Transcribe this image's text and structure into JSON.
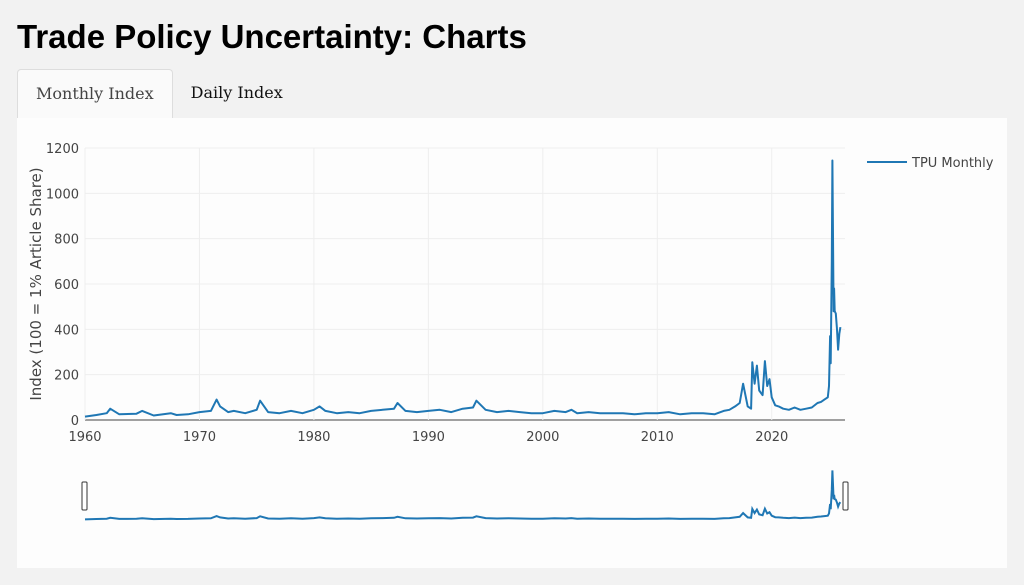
{
  "title": "Trade Policy Uncertainty: Charts",
  "tabs": [
    {
      "label": "Monthly Index",
      "active": true
    },
    {
      "label": "Daily Index",
      "active": false
    }
  ],
  "chart_data": {
    "type": "line",
    "title": "",
    "xlabel": "",
    "ylabel": "Index (100 = 1% Article Share)",
    "xlim": [
      1960,
      2026.4
    ],
    "ylim": [
      0,
      1200
    ],
    "xticks": [
      "1960",
      "1970",
      "1980",
      "1990",
      "2000",
      "2010",
      "2020"
    ],
    "yticks": [
      "0",
      "200",
      "400",
      "600",
      "800",
      "1000",
      "1200"
    ],
    "legend": {
      "position": "top-right",
      "entries": [
        "TPU Monthly"
      ]
    },
    "grid": true,
    "range_slider": true,
    "series": [
      {
        "name": "TPU Monthly",
        "color": "#1f77b4",
        "x": [
          1960,
          1961,
          1961.9,
          1962.2,
          1963,
          1964.5,
          1965,
          1966,
          1967.5,
          1968,
          1969,
          1970,
          1971,
          1971.5,
          1971.8,
          1972.5,
          1973,
          1974,
          1975,
          1975.3,
          1976,
          1977,
          1978,
          1979,
          1980,
          1980.5,
          1981,
          1982,
          1983,
          1984,
          1985,
          1986,
          1987,
          1987.3,
          1988,
          1989,
          1990,
          1991,
          1992,
          1993,
          1993.9,
          1994.2,
          1995,
          1996,
          1997,
          1998,
          1999,
          2000,
          2001,
          2002,
          2002.5,
          2003,
          2004,
          2005,
          2006,
          2007,
          2008,
          2009,
          2010,
          2011,
          2012,
          2013,
          2014,
          2015,
          2015.8,
          2016.3,
          2016.8,
          2017.2,
          2017.5,
          2017.9,
          2018.2,
          2018.3,
          2018.5,
          2018.7,
          2018.9,
          2019.2,
          2019.4,
          2019.6,
          2019.8,
          2020,
          2020.3,
          2020.6,
          2021,
          2021.5,
          2022,
          2022.5,
          2023,
          2023.5,
          2024,
          2024.3,
          2024.6,
          2024.9,
          2025.0,
          2025.1,
          2025.15,
          2025.25,
          2025.3,
          2025.4,
          2025.45,
          2025.5,
          2025.6,
          2025.7,
          2025.8,
          2025.9,
          2026
        ],
        "y": [
          15,
          22,
          30,
          50,
          25,
          28,
          40,
          20,
          30,
          22,
          25,
          35,
          40,
          90,
          60,
          35,
          40,
          30,
          45,
          85,
          35,
          30,
          40,
          30,
          45,
          60,
          40,
          30,
          35,
          30,
          40,
          45,
          50,
          75,
          40,
          35,
          40,
          45,
          35,
          50,
          55,
          85,
          45,
          35,
          40,
          35,
          30,
          30,
          40,
          35,
          45,
          30,
          35,
          30,
          30,
          30,
          25,
          30,
          30,
          35,
          25,
          30,
          30,
          25,
          40,
          45,
          60,
          75,
          160,
          60,
          50,
          255,
          160,
          240,
          130,
          110,
          260,
          150,
          180,
          100,
          65,
          60,
          50,
          45,
          55,
          45,
          50,
          55,
          75,
          80,
          90,
          100,
          150,
          370,
          250,
          700,
          1145,
          480,
          580,
          480,
          470,
          400,
          310,
          380,
          410
        ]
      }
    ]
  }
}
